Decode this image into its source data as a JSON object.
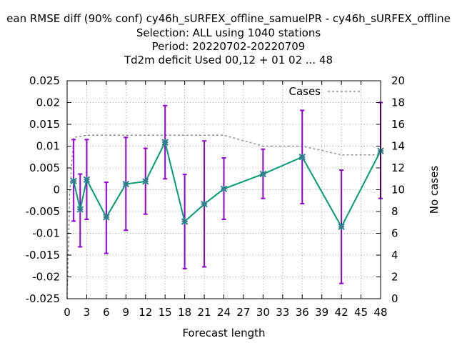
{
  "chart_data": {
    "type": "line",
    "title_lines": [
      "ean RMSE diff (90% conf) cy46h_sURFEX_offline_samuelPR - cy46h_sURFEX_offline",
      "Selection: ALL using  1040 stations",
      "Period: 20220702-20220709",
      "Td2m deficit   Used  00,12  + 01 02 ... 48"
    ],
    "xlabel": "Forecast length",
    "y2label": "No cases",
    "xlim": [
      0,
      48
    ],
    "ylim": [
      -0.025,
      0.025
    ],
    "y2lim": [
      0,
      20
    ],
    "xticks": [
      "0",
      "3",
      "6",
      "9",
      "12",
      "15",
      "18",
      "21",
      "24",
      "27",
      "30",
      "33",
      "36",
      "39",
      "42",
      "45",
      "48"
    ],
    "yticks": [
      "0.025",
      "0.02",
      "0.015",
      "0.01",
      "0.005",
      "0",
      "-0.005",
      "-0.01",
      "-0.015",
      "-0.02",
      "-0.025"
    ],
    "y2ticks": [
      "20",
      "18",
      "16",
      "14",
      "12",
      "10",
      "8",
      "6",
      "4",
      "2",
      "0"
    ],
    "grid": true,
    "legend": {
      "position": "top-right",
      "cases_label": "Cases"
    },
    "series": [
      {
        "axis": "y1",
        "x": [
          1,
          2,
          3,
          6,
          9,
          12,
          15,
          18,
          21,
          24,
          30,
          36,
          42,
          48
        ],
        "mean": [
          0.002,
          -0.0045,
          0.0023,
          -0.0063,
          0.0013,
          0.0019,
          0.0109,
          -0.0073,
          -0.0033,
          0.0002,
          0.0036,
          0.0075,
          -0.0085,
          0.0089
        ],
        "low": [
          -0.0072,
          -0.0131,
          -0.0068,
          -0.0146,
          -0.0093,
          -0.0056,
          0.0025,
          -0.0181,
          -0.0177,
          -0.0068,
          -0.002,
          -0.0032,
          -0.0215,
          -0.002
        ],
        "high": [
          0.0115,
          0.0036,
          0.0115,
          0.0017,
          0.012,
          0.0095,
          0.0193,
          0.0035,
          0.0112,
          0.0073,
          0.0093,
          0.0182,
          0.0045,
          0.02
        ],
        "line_color": "#009e73",
        "errorbar_color": "#9400d3",
        "marker_color": "#2f7f8f"
      },
      {
        "name": "Cases",
        "axis": "y2",
        "x": [
          0,
          0.4,
          1,
          3,
          24,
          30,
          36,
          42,
          48
        ],
        "values": [
          0,
          9.8,
          14.8,
          15,
          15,
          14,
          14,
          13.2,
          13.2
        ],
        "color": "#909090",
        "style": "dashed"
      }
    ]
  }
}
